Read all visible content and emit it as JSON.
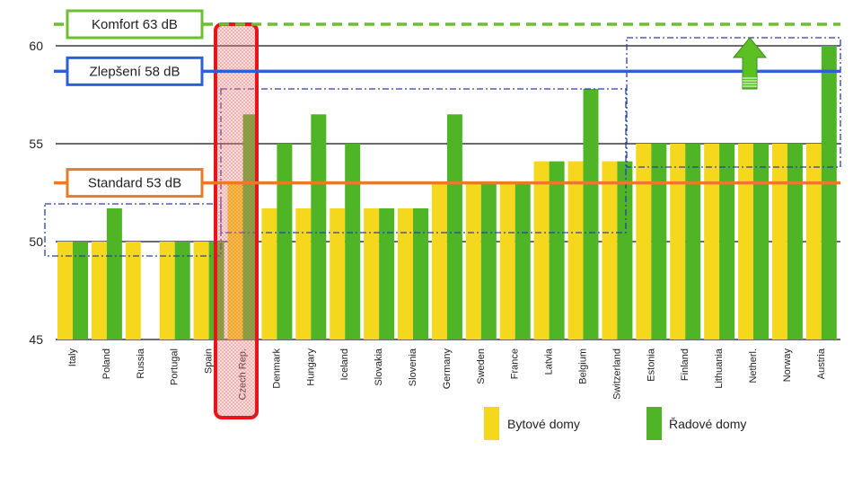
{
  "chart_data": {
    "type": "bar",
    "categories": [
      "Italy",
      "Poland",
      "Russia",
      "Portugal",
      "Spain",
      "Czech Rep.",
      "Denmark",
      "Hungary",
      "Iceland",
      "Slovakia",
      "Slovenia",
      "Germany",
      "Sweden",
      "France",
      "Latvia",
      "Belgium",
      "Switzerland",
      "Estonia",
      "Finland",
      "Lithuania",
      "Netherl.",
      "Norway",
      "Austria"
    ],
    "series": [
      {
        "name": "Bytové domy",
        "values": [
          50,
          50,
          50,
          50,
          50,
          53,
          51.7,
          51.7,
          51.7,
          51.7,
          51.7,
          53,
          53,
          53,
          54.1,
          54.1,
          54.1,
          55,
          55,
          55,
          55,
          55,
          55
        ]
      },
      {
        "name": "Řadové domy",
        "values": [
          50,
          51.7,
          null,
          50,
          50,
          56.5,
          55,
          56.5,
          55,
          51.7,
          51.7,
          56.5,
          53,
          53,
          54.1,
          57.8,
          54.1,
          55,
          55,
          55,
          55,
          55,
          60
        ]
      }
    ],
    "ylim": [
      45,
      62
    ],
    "yticks": [
      45,
      50,
      55,
      60
    ],
    "grid": true,
    "legend_position": "bottom-right",
    "highlighted_category": "Czech Rep.",
    "reference_lines": [
      {
        "label": "Komfort 63 dB",
        "value": 61.1,
        "color": "#6cbf2f",
        "style": "dashed"
      },
      {
        "label": "Zlepšení 58 dB",
        "value": 58.7,
        "color": "#2f5fd6",
        "style": "solid"
      },
      {
        "label": "Standard 53 dB",
        "value": 53,
        "color": "#e87a28",
        "style": "solid"
      }
    ],
    "colors": {
      "Bytové domy": "#f5d81e",
      "Řadové domy": "#4fb527"
    }
  }
}
